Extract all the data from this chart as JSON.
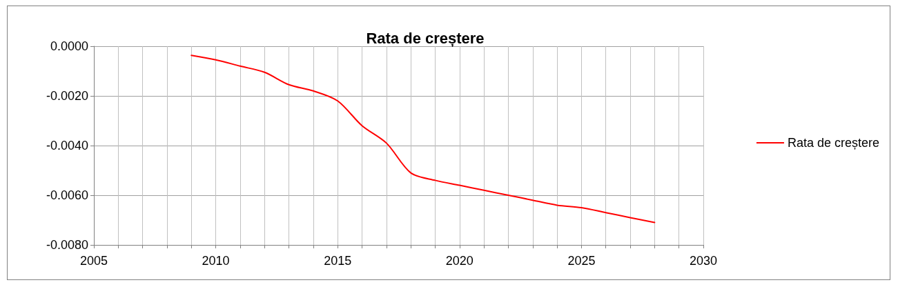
{
  "chart_data": {
    "type": "line",
    "title": "Rata de creștere",
    "x": [
      2009,
      2010,
      2011,
      2012,
      2013,
      2014,
      2015,
      2016,
      2017,
      2018,
      2019,
      2020,
      2021,
      2022,
      2023,
      2024,
      2025,
      2026,
      2027,
      2028
    ],
    "series": [
      {
        "name": "Rata de creștere",
        "color": "#ff0000",
        "values": [
          -0.00037,
          -0.00055,
          -0.0008,
          -0.00105,
          -0.00155,
          -0.0018,
          -0.0022,
          -0.0032,
          -0.0039,
          -0.0051,
          -0.0054,
          -0.0056,
          -0.0058,
          -0.006,
          -0.0062,
          -0.0064,
          -0.0065,
          -0.0067,
          -0.0069,
          -0.0071
        ]
      }
    ],
    "xlim": [
      2005,
      2030
    ],
    "xticks": [
      2005,
      {
        "value": 2006,
        "label": null
      },
      {
        "value": 2007,
        "label": null
      },
      {
        "value": 2008,
        "label": null
      },
      {
        "value": 2009,
        "label": null
      },
      2010,
      {
        "value": 2011,
        "label": null
      },
      {
        "value": 2012,
        "label": null
      },
      {
        "value": 2013,
        "label": null
      },
      {
        "value": 2014,
        "label": null
      },
      2015,
      {
        "value": 2016,
        "label": null
      },
      {
        "value": 2017,
        "label": null
      },
      {
        "value": 2018,
        "label": null
      },
      {
        "value": 2019,
        "label": null
      },
      2020,
      {
        "value": 2021,
        "label": null
      },
      {
        "value": 2022,
        "label": null
      },
      {
        "value": 2023,
        "label": null
      },
      {
        "value": 2024,
        "label": null
      },
      2025,
      {
        "value": 2026,
        "label": null
      },
      {
        "value": 2027,
        "label": null
      },
      {
        "value": 2028,
        "label": null
      },
      {
        "value": 2029,
        "label": null
      },
      2030
    ],
    "ylim": [
      -0.008,
      0
    ],
    "yticks": [
      {
        "value": -0.008,
        "label": "-0.0080"
      },
      {
        "value": -0.006,
        "label": "-0.0060"
      },
      {
        "value": -0.004,
        "label": "-0.0040"
      },
      {
        "value": -0.002,
        "label": "-0.0020"
      },
      {
        "value": 0,
        "label": "0.0000"
      }
    ],
    "grid": true,
    "legend": "right",
    "marker": "none",
    "line_style": "solid"
  }
}
